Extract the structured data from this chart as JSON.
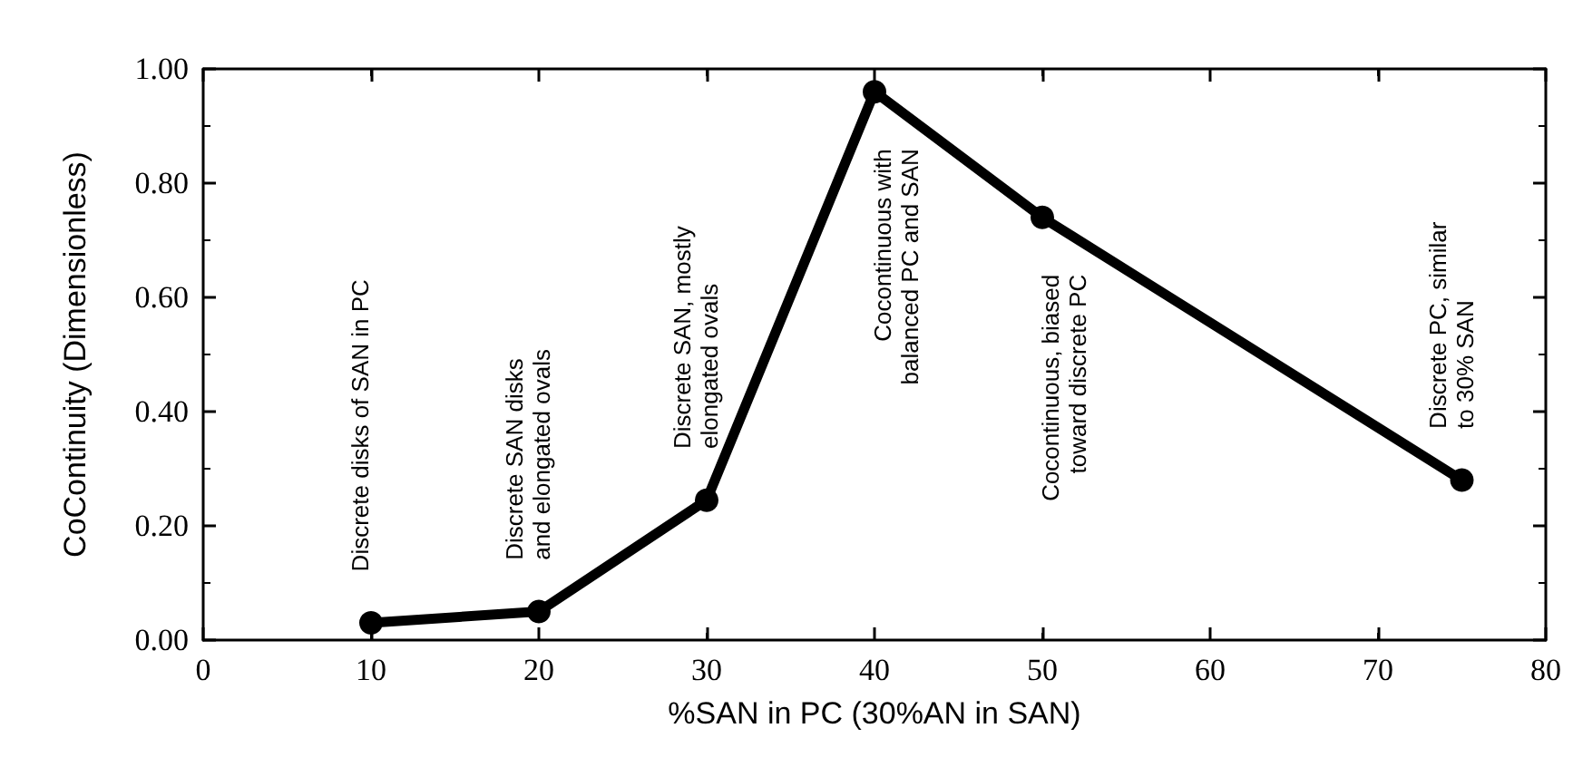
{
  "chart_data": {
    "type": "line",
    "xlabel": "%SAN in PC (30%AN in SAN)",
    "ylabel": "CoContinuity (Dimensionless)",
    "x": [
      10,
      20,
      30,
      40,
      50,
      75
    ],
    "series": [
      {
        "color": "#000000",
        "values": [
          0.03,
          0.05,
          0.245,
          0.96,
          0.74,
          0.28
        ]
      }
    ],
    "xlim": [
      0,
      80
    ],
    "xticks": [
      0,
      10,
      20,
      30,
      40,
      50,
      60,
      70,
      80
    ],
    "ylim": [
      0,
      1
    ],
    "yticks": [
      {
        "value": 0,
        "label": "0.00"
      },
      {
        "value": 0.2,
        "label": "0.20"
      },
      {
        "value": 0.4,
        "label": "0.40"
      },
      {
        "value": 0.6,
        "label": "0.60"
      },
      {
        "value": 0.8,
        "label": "0.80"
      },
      {
        "value": 1,
        "label": "1.00"
      }
    ],
    "annotations": [
      {
        "text": "Discrete disks of SAN in PC",
        "x": 10,
        "y": 0.03
      },
      {
        "text": "Discrete SAN disks\nand elongated ovals",
        "x": 20,
        "y": 0.05
      },
      {
        "text": "Discrete SAN, mostly\nelongated ovals",
        "x": 30,
        "y": 0.245
      },
      {
        "text": "Cocontinuous with\nbalanced PC and SAN",
        "x": 40,
        "y": 0.96
      },
      {
        "text": "Cocontinuous, biased\ntoward discrete PC",
        "x": 50,
        "y": 0.74
      },
      {
        "text": "Discrete PC, similar\nto 30% SAN",
        "x": 75,
        "y": 0.28
      }
    ],
    "grid": false,
    "marker": "circle",
    "line_style": "solid"
  }
}
